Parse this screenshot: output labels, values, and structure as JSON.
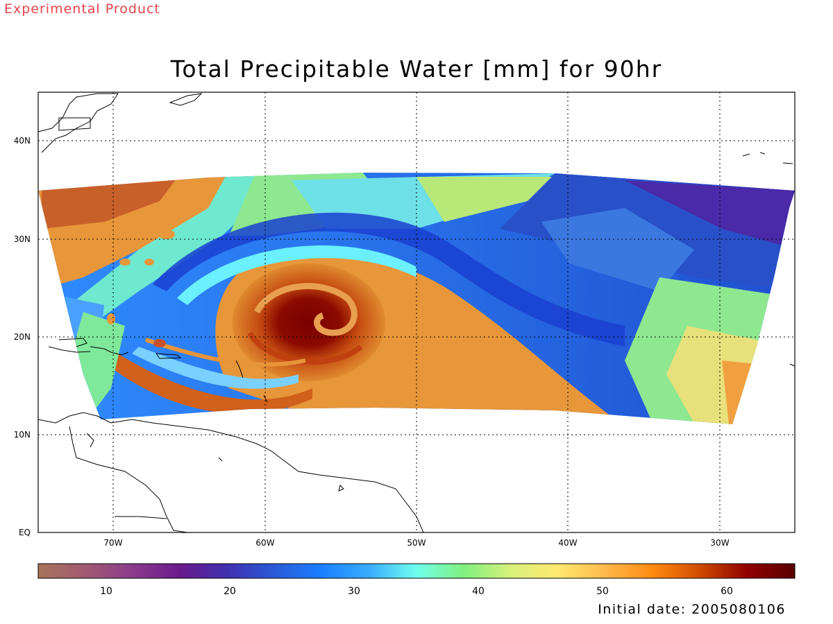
{
  "header": {
    "tag": "Experimental Product",
    "title": "Total Precipitable Water [mm] for 90hr"
  },
  "map": {
    "lon_ticks": [
      "70W",
      "60W",
      "50W",
      "40W",
      "30W"
    ],
    "lat_ticks": [
      "EQ",
      "10N",
      "20N",
      "30N",
      "40N"
    ],
    "grid": "dotted"
  },
  "colorbar": {
    "ticks": [
      "10",
      "20",
      "30",
      "40",
      "50",
      "60"
    ],
    "colors": [
      "#a9745a",
      "#a05a72",
      "#8a3c8c",
      "#6a1a8c",
      "#4030b0",
      "#2a5ad8",
      "#1a80ff",
      "#3aacff",
      "#70ffee",
      "#7ff07f",
      "#d8f07a",
      "#ffe870",
      "#ffb84a",
      "#ff8a10",
      "#d04a00",
      "#900000",
      "#5a0000"
    ]
  },
  "footer": {
    "initial_date": "Initial date: 2005080106"
  }
}
